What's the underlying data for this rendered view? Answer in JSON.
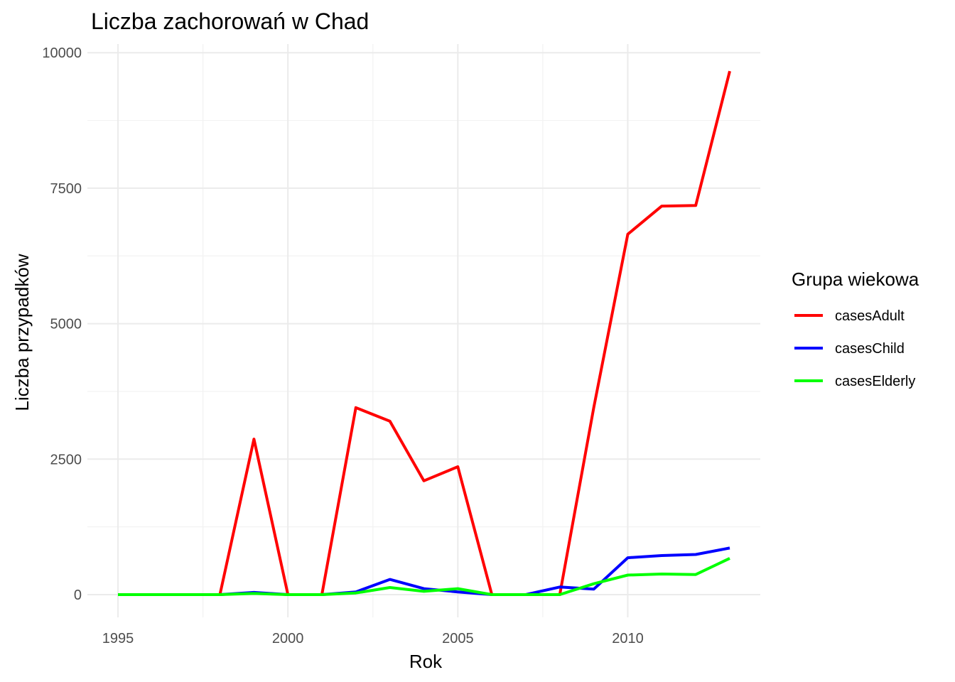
{
  "chart_data": {
    "type": "line",
    "title": "Liczba zachorowań w Chad",
    "xlabel": "Rok",
    "ylabel": "Liczba przypadków",
    "x": [
      1995,
      1996,
      1997,
      1998,
      1999,
      2000,
      2001,
      2002,
      2003,
      2004,
      2005,
      2006,
      2007,
      2008,
      2009,
      2010,
      2011,
      2012,
      2013
    ],
    "xlim": [
      1994.1,
      2013.9
    ],
    "ylim": [
      -420,
      10160
    ],
    "x_ticks": [
      1995,
      2000,
      2005,
      2010
    ],
    "x_tick_labels": [
      "1995",
      "2000",
      "2005",
      "2010"
    ],
    "y_ticks": [
      0,
      2500,
      5000,
      7500,
      10000
    ],
    "y_tick_labels": [
      "0",
      "2500",
      "5000",
      "7500",
      "10000"
    ],
    "grid": true,
    "legend": {
      "title": "Grupa wiekowa",
      "position": "right"
    },
    "series": [
      {
        "name": "casesAdult",
        "color": "#ff0000",
        "values": [
          0,
          0,
          0,
          0,
          2870,
          0,
          0,
          3450,
          3200,
          2100,
          2360,
          0,
          0,
          0,
          3450,
          6650,
          7170,
          7180,
          9660
        ]
      },
      {
        "name": "casesChild",
        "color": "#0000ff",
        "values": [
          0,
          0,
          0,
          0,
          40,
          0,
          0,
          50,
          280,
          110,
          50,
          0,
          0,
          140,
          100,
          680,
          720,
          740,
          860
        ]
      },
      {
        "name": "casesElderly",
        "color": "#00ff00",
        "values": [
          0,
          0,
          0,
          0,
          20,
          0,
          0,
          30,
          130,
          60,
          110,
          0,
          0,
          0,
          200,
          360,
          380,
          370,
          670
        ]
      }
    ]
  }
}
